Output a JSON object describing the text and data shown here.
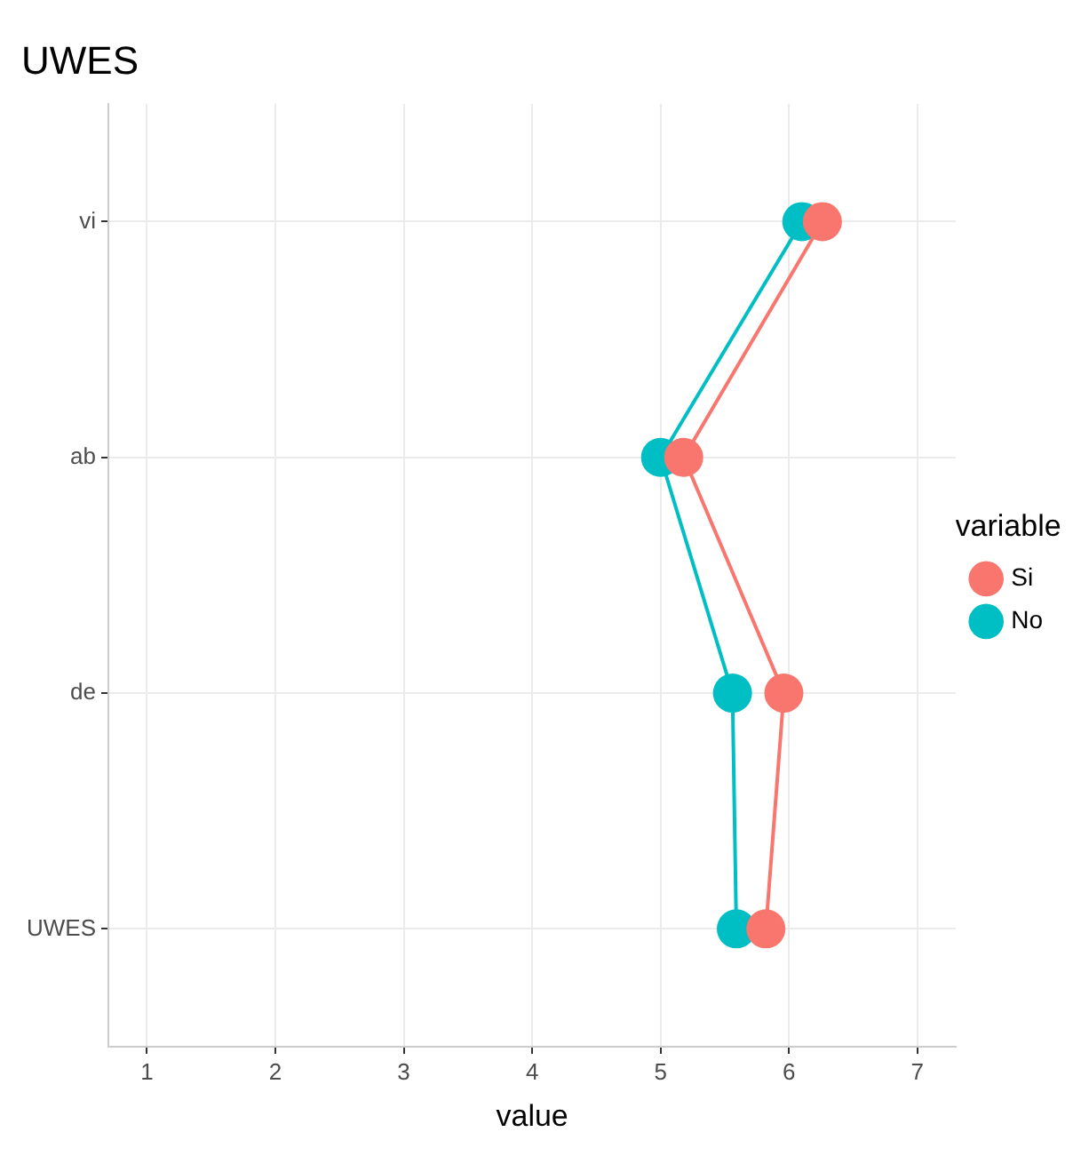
{
  "chart_data": {
    "type": "line",
    "title": "UWES",
    "xlabel": "value",
    "legend_title": "variable",
    "categories": [
      "vi",
      "ab",
      "de",
      "UWES"
    ],
    "series": [
      {
        "name": "Si",
        "color": "#f8766d",
        "values": [
          6.26,
          5.18,
          5.96,
          5.82
        ]
      },
      {
        "name": "No",
        "color": "#00bfc4",
        "values": [
          6.1,
          5.0,
          5.56,
          5.59
        ]
      }
    ],
    "orientation": "horizontal",
    "xlim": [
      0.7,
      7.3
    ],
    "xticks": [
      1,
      2,
      3,
      4,
      5,
      6,
      7
    ],
    "grid": true,
    "legend": "right",
    "marker": "circle",
    "line_style": "solid"
  }
}
